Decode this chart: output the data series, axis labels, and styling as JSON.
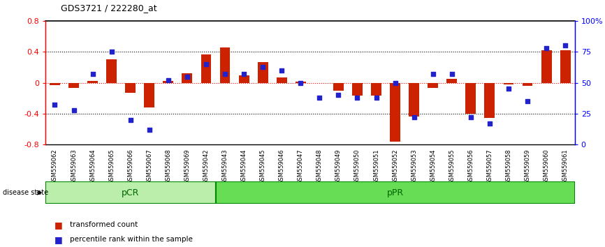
{
  "title": "GDS3721 / 222280_at",
  "samples": [
    "GSM559062",
    "GSM559063",
    "GSM559064",
    "GSM559065",
    "GSM559066",
    "GSM559067",
    "GSM559068",
    "GSM559069",
    "GSM559042",
    "GSM559043",
    "GSM559044",
    "GSM559045",
    "GSM559046",
    "GSM559047",
    "GSM559048",
    "GSM559049",
    "GSM559050",
    "GSM559051",
    "GSM559052",
    "GSM559053",
    "GSM559054",
    "GSM559055",
    "GSM559056",
    "GSM559057",
    "GSM559058",
    "GSM559059",
    "GSM559060",
    "GSM559061"
  ],
  "red_values": [
    -0.03,
    -0.07,
    0.02,
    0.3,
    -0.13,
    -0.32,
    0.02,
    0.12,
    0.37,
    0.46,
    0.1,
    0.27,
    0.07,
    0.01,
    0.0,
    -0.1,
    -0.17,
    -0.17,
    -0.76,
    -0.44,
    -0.07,
    0.05,
    -0.4,
    -0.46,
    -0.02,
    -0.04,
    0.42,
    0.42
  ],
  "blue_pct": [
    32,
    28,
    57,
    75,
    20,
    12,
    52,
    55,
    65,
    57,
    57,
    63,
    60,
    50,
    38,
    40,
    38,
    38,
    50,
    22,
    57,
    57,
    22,
    17,
    45,
    35,
    78,
    80
  ],
  "pCR_count": 9,
  "pPR_count": 19,
  "ylim": [
    -0.8,
    0.8
  ],
  "right_ylim": [
    0,
    100
  ],
  "bar_color": "#cc2200",
  "dot_color": "#2222cc",
  "pCR_facecolor": "#bbeeaa",
  "pPR_facecolor": "#66dd55",
  "group_border_color": "#008800",
  "bg_tick_color": "#cccccc"
}
